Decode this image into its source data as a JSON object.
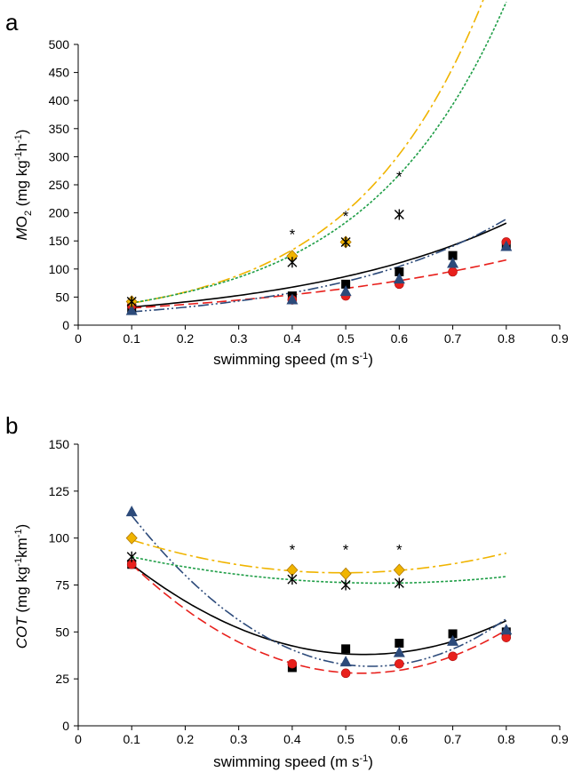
{
  "chart_data": [
    {
      "type": "scatter",
      "panel_label": "a",
      "xlabel": "swimming speed (m s-1)",
      "ylabel": "MO2 (mg kg-1h-1)",
      "xlim": [
        0,
        0.9
      ],
      "ylim": [
        0,
        500
      ],
      "xticks": [
        "0",
        "0.1",
        "0.2",
        "0.3",
        "0.4",
        "0.5",
        "0.6",
        "0.7",
        "0.8",
        "0.9"
      ],
      "yticks": [
        "0",
        "50",
        "100",
        "150",
        "200",
        "250",
        "300",
        "350",
        "400",
        "450",
        "500"
      ],
      "grid": false,
      "series": [
        {
          "marker": "square",
          "color": "#000000",
          "line_style": "solid",
          "x": [
            0.1,
            0.4,
            0.5,
            0.6,
            0.7,
            0.8
          ],
          "y": [
            30,
            52,
            73,
            95,
            124,
            142
          ],
          "fit": {
            "x": [
              0.1,
              0.8
            ],
            "a": 25.2,
            "b": 2.47
          }
        },
        {
          "marker": "circle",
          "color": "#e8201c",
          "line_style": "dashed",
          "x": [
            0.1,
            0.4,
            0.5,
            0.6,
            0.7,
            0.8
          ],
          "y": [
            35,
            45,
            52,
            73,
            95,
            148
          ],
          "fit": {
            "x": [
              0.1,
              0.8
            ],
            "a": 25.2,
            "b": 1.91
          }
        },
        {
          "marker": "triangle",
          "color": "#2c4a7a",
          "line_style": "dashdotdot",
          "x": [
            0.1,
            0.4,
            0.5,
            0.6,
            0.7,
            0.8
          ],
          "y": [
            26,
            45,
            60,
            82,
            110,
            140
          ],
          "fit": {
            "x": [
              0.1,
              0.8
            ],
            "a": 17.7,
            "b": 2.96
          }
        },
        {
          "marker": "diamond",
          "color": "#f0b400",
          "line_style": "dashdot",
          "x": [
            0.1,
            0.4,
            0.5
          ],
          "y": [
            42,
            123,
            148
          ],
          "fit": {
            "x": [
              0.1,
              0.8
            ],
            "a": 26.0,
            "b": 4.1
          }
        },
        {
          "marker": "x-star",
          "color": "#000000",
          "fit_color": "#1f9e47",
          "line_style": "dotted",
          "x": [
            0.1,
            0.4,
            0.5,
            0.6
          ],
          "y": [
            42,
            112,
            148,
            197
          ],
          "fit": {
            "x": [
              0.1,
              0.8
            ],
            "a": 27.1,
            "b": 3.82
          }
        }
      ],
      "annotations": [
        {
          "text": "*",
          "x": 0.4,
          "y": 162
        },
        {
          "text": "*",
          "x": 0.5,
          "y": 195
        },
        {
          "text": "*",
          "x": 0.6,
          "y": 265
        }
      ]
    },
    {
      "type": "scatter",
      "panel_label": "b",
      "xlabel": "swimming speed (m s-1)",
      "ylabel": "COT (mg kg-1km-1)",
      "xlim": [
        0,
        0.9
      ],
      "ylim": [
        0,
        150
      ],
      "xticks": [
        "0",
        "0.1",
        "0.2",
        "0.3",
        "0.4",
        "0.5",
        "0.6",
        "0.7",
        "0.8",
        "0.9"
      ],
      "yticks": [
        "0",
        "25",
        "50",
        "75",
        "100",
        "125",
        "150"
      ],
      "grid": false,
      "series": [
        {
          "marker": "square",
          "color": "#000000",
          "line_style": "solid",
          "x": [
            0.1,
            0.4,
            0.5,
            0.6,
            0.7,
            0.8
          ],
          "y": [
            86,
            31,
            41,
            44,
            49,
            50
          ],
          "fit": {
            "x": [
              0.1,
              0.8
            ],
            "pts": [
              [
                0.1,
                86
              ],
              [
                0.54,
                38
              ],
              [
                0.8,
                56
              ]
            ]
          }
        },
        {
          "marker": "circle",
          "color": "#e8201c",
          "line_style": "dashed",
          "x": [
            0.1,
            0.4,
            0.5,
            0.6,
            0.7,
            0.8
          ],
          "y": [
            86,
            33,
            28,
            33,
            37,
            47
          ],
          "fit": {
            "x": [
              0.1,
              0.8
            ],
            "pts": [
              [
                0.1,
                86
              ],
              [
                0.53,
                28
              ],
              [
                0.8,
                51
              ]
            ]
          }
        },
        {
          "marker": "triangle",
          "color": "#2c4a7a",
          "line_style": "dashdotdot",
          "x": [
            0.1,
            0.5,
            0.6,
            0.7,
            0.8
          ],
          "y": [
            114,
            34,
            39,
            45,
            51
          ],
          "fit": {
            "x": [
              0.1,
              0.8
            ],
            "pts": [
              [
                0.1,
                112
              ],
              [
                0.52,
                32
              ],
              [
                0.8,
                57
              ]
            ]
          }
        },
        {
          "marker": "diamond",
          "color": "#f0b400",
          "line_style": "dashdot",
          "x": [
            0.1,
            0.4,
            0.5,
            0.6
          ],
          "y": [
            100,
            83,
            81,
            83
          ],
          "fit": {
            "x": [
              0.1,
              0.8
            ],
            "pts": [
              [
                0.1,
                99
              ],
              [
                0.5,
                81.5
              ],
              [
                0.8,
                92
              ]
            ]
          }
        },
        {
          "marker": "x-star",
          "color": "#000000",
          "fit_color": "#1f9e47",
          "line_style": "dotted",
          "x": [
            0.1,
            0.4,
            0.5,
            0.6
          ],
          "y": [
            90,
            78,
            75,
            76
          ],
          "fit": {
            "x": [
              0.1,
              0.8
            ],
            "pts": [
              [
                0.1,
                90
              ],
              [
                0.55,
                76
              ],
              [
                0.8,
                79.5
              ]
            ]
          }
        }
      ],
      "annotations": [
        {
          "text": "*",
          "x": 0.4,
          "y": 94
        },
        {
          "text": "*",
          "x": 0.5,
          "y": 94
        },
        {
          "text": "*",
          "x": 0.6,
          "y": 94
        }
      ]
    }
  ]
}
